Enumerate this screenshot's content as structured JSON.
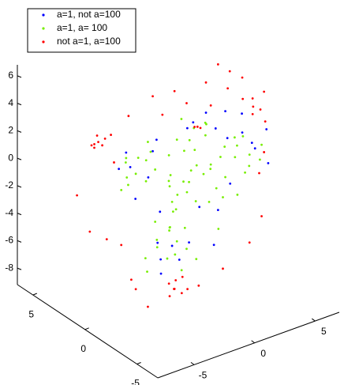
{
  "chart_data": {
    "type": "scatter3d",
    "legend": "upper left",
    "xlim": [
      -8,
      7
    ],
    "ylim": [
      -7,
      6.5
    ],
    "zlim": [
      -9.2,
      6.8
    ],
    "xticks": [
      -5,
      0,
      5
    ],
    "yticks": [
      -5,
      0,
      5
    ],
    "zticks": [
      -8,
      -6,
      -4,
      -2,
      0,
      2,
      4,
      6
    ],
    "series": [
      {
        "name": "a=1, not a=100",
        "color": "#0000ff",
        "x": [
          -4,
          -3.2,
          -4.6,
          -2.4,
          5.8,
          6.4,
          5,
          6.8,
          4.2,
          -0.8,
          -1.4,
          -0.2,
          -2,
          0.6,
          1.2,
          2,
          0.2,
          2.8,
          -3.4,
          -1.8,
          3,
          4,
          7,
          -5.2,
          -2.6,
          1.8,
          3.6,
          -1.2,
          2.4,
          5.4
        ],
        "y": [
          0.3,
          -0.5,
          0,
          0,
          0,
          0.4,
          0,
          -0.4,
          0.5,
          0,
          0.4,
          0,
          0,
          0,
          0.3,
          0,
          -0.3,
          0,
          0.5,
          0,
          0,
          0,
          0,
          0,
          -0.6,
          0.4,
          0,
          0.6,
          -0.3,
          0.5
        ],
        "z": [
          1.2,
          0.6,
          2.6,
          2,
          0,
          -0.8,
          1,
          -1.6,
          0.6,
          -5.4,
          -6.4,
          -6.6,
          -4.8,
          -5.6,
          2.8,
          3.4,
          3,
          2,
          -1.4,
          -2.6,
          -4,
          -2.4,
          0.6,
          1.6,
          3.2,
          -3.6,
          3,
          -7.6,
          -6.2,
          2
        ]
      },
      {
        "name": "a=1, a= 100",
        "color": "#77ee00",
        "x": [
          0.6,
          1.2,
          0,
          1.8,
          -0.5,
          0.3,
          1,
          2.4,
          -1,
          0.8,
          1.5,
          0.2,
          -0.2,
          2,
          2.8,
          -1.5,
          0.5,
          1.4,
          -0.8,
          3.2,
          0.9,
          1.7,
          -0.3,
          -1,
          -0.6,
          -1.4,
          -0.4,
          -1.8,
          -0.9,
          -0.2,
          -1.2,
          0,
          -2.2,
          0.4,
          -1.6,
          -0.7,
          -3.6,
          -4.2,
          -3,
          -3.8,
          -4.6,
          -2.6,
          -3.3,
          -4.8,
          -2.8,
          -4,
          -2.2,
          -5,
          5.6,
          5,
          6.2,
          4.4,
          5.4,
          6.6,
          4.8,
          3.8,
          6,
          4.2,
          3.6,
          1,
          0.4,
          1.6,
          2.2,
          -0.4,
          -2,
          2.6,
          3.4,
          -3,
          1.2,
          4.6
        ],
        "y": [
          0,
          0.5,
          -0.5,
          0,
          0.5,
          -1,
          1,
          0,
          0,
          -0.5,
          0.5,
          0,
          1,
          -1,
          0.5,
          -0.5,
          1,
          -1,
          0,
          0,
          0.3,
          -0.3,
          0.2,
          0,
          0.5,
          -0.5,
          0,
          0.3,
          -0.4,
          0.6,
          0,
          -0.3,
          0,
          0,
          0.5,
          -0.8,
          0,
          0.5,
          -0.5,
          0,
          0,
          0.4,
          -0.4,
          -0.3,
          0,
          0.5,
          0,
          0,
          0,
          0.5,
          -0.3,
          0,
          0.4,
          0,
          -0.5,
          0.3,
          0.5,
          -0.2,
          0,
          0,
          0.5,
          -0.4,
          0.2,
          0,
          1,
          -0.5,
          0,
          0,
          0,
          0
        ],
        "z": [
          -1.2,
          -0.8,
          -1.5,
          -1,
          -0.6,
          -2,
          -1.8,
          -0.5,
          -1,
          0.2,
          0.6,
          1.2,
          0.5,
          -1.6,
          -1.2,
          -0.2,
          -2.6,
          -2.4,
          -2.2,
          -0.2,
          1.6,
          2,
          -3,
          -4,
          -4.6,
          -3.6,
          -5.2,
          -4.8,
          -5.8,
          -3.4,
          -6.2,
          -4.2,
          -3.2,
          -6,
          -5.5,
          -6.8,
          1.9,
          1.5,
          2.4,
          0.8,
          2.2,
          1.2,
          0.3,
          1,
          2.8,
          -0.2,
          0.6,
          0,
          -0.8,
          -0.2,
          -1.2,
          -0.6,
          0.4,
          -0.4,
          -1.6,
          0.2,
          -2,
          1,
          -1.8,
          2.6,
          3.2,
          3,
          2.4,
          2.2,
          -7.4,
          -5,
          -3.2,
          -5.6,
          -7,
          -3.4
        ]
      },
      {
        "name": "not a=1, a=100",
        "color": "#ff0000",
        "x": [
          -6.9,
          -7.2,
          -6.6,
          -7,
          -6.4,
          -7.4,
          -6.8,
          -6.2,
          -0.5,
          -0.8,
          -0.2,
          -0.6,
          -0.3,
          0,
          -1,
          0.3,
          5.9,
          6.2,
          5.6,
          6.5,
          5.3,
          1.3,
          1.8,
          0.8,
          2.4,
          3.8,
          4.4,
          -0.6,
          0.4,
          3,
          5,
          6.8,
          6.9,
          -7.8,
          -7.6,
          -5,
          -4.6,
          -6.2,
          -3.8,
          -2.4,
          -4.4,
          -5.6,
          6.6,
          5.6,
          6.4,
          6.8,
          3.4,
          1.4,
          -2.8,
          2,
          -1.6
        ],
        "y": [
          0,
          0.3,
          -0.3,
          0,
          0.2,
          -0.2,
          0.5,
          -0.4,
          0,
          0.3,
          -0.3,
          0,
          0.4,
          0,
          0,
          -0.2,
          0,
          0.4,
          -0.3,
          0,
          0.3,
          0,
          0.3,
          -0.3,
          0,
          0,
          0.5,
          0,
          0,
          0,
          0,
          0,
          0,
          1,
          0,
          0,
          -0.5,
          0,
          0,
          0,
          0,
          0,
          0,
          0,
          0,
          0,
          0,
          0,
          0,
          0,
          0
        ],
        "z": [
          4.1,
          3.8,
          4.4,
          4.6,
          3.6,
          4.2,
          3.4,
          4.6,
          -8,
          -8.3,
          -7.7,
          -8.6,
          -8.9,
          -9.1,
          -9,
          -8.8,
          2.6,
          2.9,
          2.3,
          2.2,
          3.2,
          2.6,
          2.2,
          2.9,
          3.8,
          4.6,
          5.4,
          5.8,
          4.6,
          6.6,
          5,
          3.4,
          1.2,
          0,
          -2.2,
          -4,
          -6.4,
          -3.2,
          -7.6,
          6,
          5.2,
          2.2,
          -5.6,
          -7.2,
          -2.4,
          -1,
          -8.4,
          -9,
          -9.2,
          5.6,
          4.4
        ]
      }
    ]
  }
}
